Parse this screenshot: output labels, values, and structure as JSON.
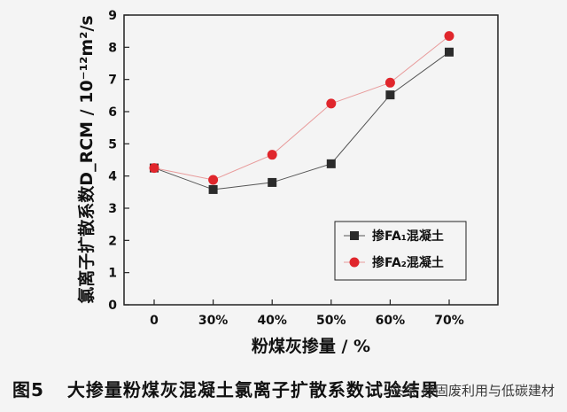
{
  "chart_data": {
    "type": "line",
    "categories": [
      "0",
      "30%",
      "40%",
      "50%",
      "60%",
      "70%"
    ],
    "series": [
      {
        "name": "掺FA₁混凝土",
        "marker": "square",
        "color": "#2b2b2b",
        "values": [
          4.25,
          3.58,
          3.8,
          4.38,
          6.52,
          7.85
        ]
      },
      {
        "name": "掺FA₂混凝土",
        "marker": "circle",
        "color": "#e0262c",
        "values": [
          4.25,
          3.88,
          4.66,
          6.25,
          6.9,
          8.35
        ]
      }
    ],
    "ylim": [
      0,
      9
    ],
    "yticks": [
      "0",
      "1",
      "2",
      "3",
      "4",
      "5",
      "6",
      "7",
      "8",
      "9"
    ],
    "xlabel": "粉煤灰掺量 / %",
    "ylabel": "氯离子扩散系数D_RCM / 10⁻¹²m²/s",
    "legend_position": "lower-right",
    "grid": false
  },
  "caption": {
    "figure_number": "图5",
    "title": "大掺量粉煤灰混凝土氯离子扩散系数试验结果"
  },
  "watermark": "头条 @固废利用与低碳建材"
}
